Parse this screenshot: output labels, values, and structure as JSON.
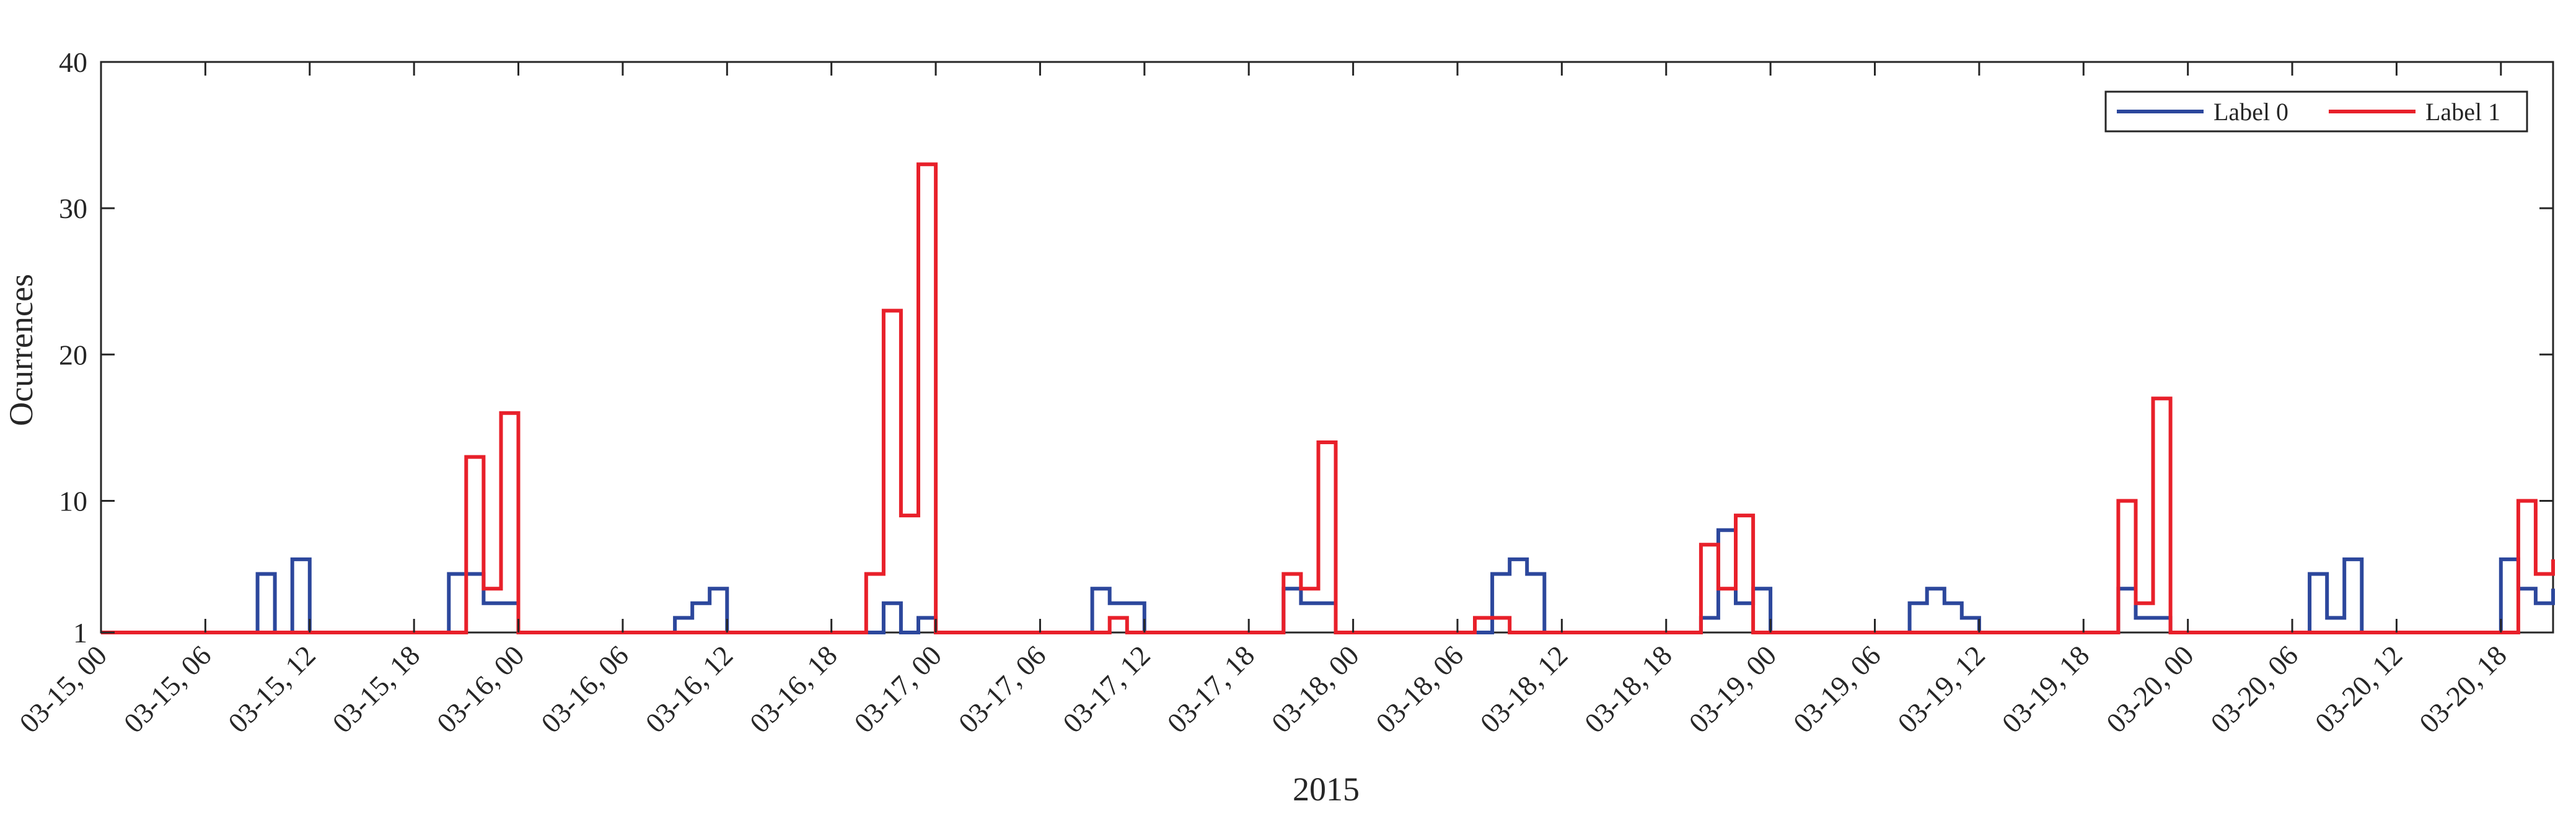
{
  "chart_data": {
    "type": "line",
    "style": "stairs",
    "xlabel": "2015",
    "ylabel": "Ocurrences",
    "ylim": [
      1,
      40
    ],
    "yticks": [
      1,
      10,
      20,
      30,
      40
    ],
    "xlim_hours": [
      0,
      141
    ],
    "x_start": "03-15, 00",
    "bin_hours": 1,
    "xticks": [
      {
        "hour": 0,
        "label": "03-15, 00"
      },
      {
        "hour": 6,
        "label": "03-15, 06"
      },
      {
        "hour": 12,
        "label": "03-15, 12"
      },
      {
        "hour": 18,
        "label": "03-15, 18"
      },
      {
        "hour": 24,
        "label": "03-16, 00"
      },
      {
        "hour": 30,
        "label": "03-16, 06"
      },
      {
        "hour": 36,
        "label": "03-16, 12"
      },
      {
        "hour": 42,
        "label": "03-16, 18"
      },
      {
        "hour": 48,
        "label": "03-17, 00"
      },
      {
        "hour": 54,
        "label": "03-17, 06"
      },
      {
        "hour": 60,
        "label": "03-17, 12"
      },
      {
        "hour": 66,
        "label": "03-17, 18"
      },
      {
        "hour": 72,
        "label": "03-18, 00"
      },
      {
        "hour": 78,
        "label": "03-18, 06"
      },
      {
        "hour": 84,
        "label": "03-18, 12"
      },
      {
        "hour": 90,
        "label": "03-18, 18"
      },
      {
        "hour": 96,
        "label": "03-19, 00"
      },
      {
        "hour": 102,
        "label": "03-19, 06"
      },
      {
        "hour": 108,
        "label": "03-19, 12"
      },
      {
        "hour": 114,
        "label": "03-19, 18"
      },
      {
        "hour": 120,
        "label": "03-20, 00"
      },
      {
        "hour": 126,
        "label": "03-20, 06"
      },
      {
        "hour": 132,
        "label": "03-20, 12"
      },
      {
        "hour": 138,
        "label": "03-20, 18"
      }
    ],
    "legend_position": "top-right",
    "grid": false,
    "series": [
      {
        "name": "Label 0",
        "color": "#2c479c",
        "points": [
          [
            0,
            1
          ],
          [
            9,
            1
          ],
          [
            9,
            5
          ],
          [
            10,
            5
          ],
          [
            10,
            1
          ],
          [
            11,
            1
          ],
          [
            11,
            6
          ],
          [
            12,
            6
          ],
          [
            12,
            1
          ],
          [
            20,
            1
          ],
          [
            20,
            5
          ],
          [
            22,
            5
          ],
          [
            22,
            3
          ],
          [
            24,
            3
          ],
          [
            24,
            1
          ],
          [
            33,
            1
          ],
          [
            33,
            2
          ],
          [
            34,
            2
          ],
          [
            34,
            3
          ],
          [
            35,
            3
          ],
          [
            35,
            4
          ],
          [
            36,
            4
          ],
          [
            36,
            1
          ],
          [
            45,
            1
          ],
          [
            45,
            3
          ],
          [
            46,
            3
          ],
          [
            46,
            1
          ],
          [
            47,
            1
          ],
          [
            47,
            2
          ],
          [
            48,
            2
          ],
          [
            48,
            1
          ],
          [
            57,
            1
          ],
          [
            57,
            4
          ],
          [
            58,
            4
          ],
          [
            58,
            3
          ],
          [
            60,
            3
          ],
          [
            60,
            1
          ],
          [
            68,
            1
          ],
          [
            68,
            4
          ],
          [
            69,
            4
          ],
          [
            69,
            3
          ],
          [
            71,
            3
          ],
          [
            71,
            1
          ],
          [
            80,
            1
          ],
          [
            80,
            5
          ],
          [
            81,
            5
          ],
          [
            81,
            6
          ],
          [
            82,
            6
          ],
          [
            82,
            5
          ],
          [
            83,
            5
          ],
          [
            83,
            1
          ],
          [
            92,
            1
          ],
          [
            92,
            2
          ],
          [
            93,
            2
          ],
          [
            93,
            8
          ],
          [
            94,
            8
          ],
          [
            94,
            3
          ],
          [
            95,
            3
          ],
          [
            95,
            4
          ],
          [
            96,
            4
          ],
          [
            96,
            1
          ],
          [
            104,
            1
          ],
          [
            104,
            3
          ],
          [
            105,
            3
          ],
          [
            105,
            4
          ],
          [
            106,
            4
          ],
          [
            106,
            3
          ],
          [
            107,
            3
          ],
          [
            107,
            2
          ],
          [
            108,
            2
          ],
          [
            108,
            1
          ],
          [
            116,
            1
          ],
          [
            116,
            4
          ],
          [
            117,
            4
          ],
          [
            117,
            2
          ],
          [
            119,
            2
          ],
          [
            119,
            1
          ],
          [
            127,
            1
          ],
          [
            127,
            5
          ],
          [
            128,
            5
          ],
          [
            128,
            2
          ],
          [
            129,
            2
          ],
          [
            129,
            6
          ],
          [
            130,
            6
          ],
          [
            130,
            1
          ],
          [
            138,
            1
          ],
          [
            138,
            6
          ],
          [
            139,
            6
          ],
          [
            139,
            4
          ],
          [
            140,
            4
          ],
          [
            140,
            3
          ],
          [
            141,
            3
          ],
          [
            141,
            4
          ]
        ]
      },
      {
        "name": "Label 1",
        "color": "#e8202a",
        "points": [
          [
            0,
            1
          ],
          [
            20,
            1
          ],
          [
            20,
            1
          ],
          [
            21,
            1
          ],
          [
            21,
            13
          ],
          [
            22,
            13
          ],
          [
            22,
            4
          ],
          [
            23,
            4
          ],
          [
            23,
            16
          ],
          [
            24,
            16
          ],
          [
            24,
            1
          ],
          [
            44,
            1
          ],
          [
            44,
            5
          ],
          [
            45,
            5
          ],
          [
            45,
            23
          ],
          [
            46,
            23
          ],
          [
            46,
            9
          ],
          [
            47,
            9
          ],
          [
            47,
            33
          ],
          [
            48,
            33
          ],
          [
            48,
            1
          ],
          [
            56,
            1
          ],
          [
            58,
            1
          ],
          [
            58,
            2
          ],
          [
            59,
            2
          ],
          [
            59,
            1
          ],
          [
            67,
            1
          ],
          [
            68,
            1
          ],
          [
            68,
            5
          ],
          [
            69,
            5
          ],
          [
            69,
            4
          ],
          [
            70,
            4
          ],
          [
            70,
            14
          ],
          [
            71,
            14
          ],
          [
            71,
            1
          ],
          [
            79,
            1
          ],
          [
            79,
            2
          ],
          [
            81,
            2
          ],
          [
            81,
            1
          ],
          [
            82,
            1
          ],
          [
            91,
            1
          ],
          [
            92,
            1
          ],
          [
            92,
            7
          ],
          [
            93,
            7
          ],
          [
            93,
            4
          ],
          [
            94,
            4
          ],
          [
            94,
            9
          ],
          [
            95,
            9
          ],
          [
            95,
            1
          ],
          [
            96,
            1
          ],
          [
            102,
            1
          ],
          [
            103,
            1
          ],
          [
            115,
            1
          ],
          [
            116,
            1
          ],
          [
            116,
            10
          ],
          [
            117,
            10
          ],
          [
            117,
            3
          ],
          [
            118,
            3
          ],
          [
            118,
            17
          ],
          [
            119,
            17
          ],
          [
            119,
            1
          ],
          [
            137,
            1
          ],
          [
            138,
            1
          ],
          [
            138,
            1
          ],
          [
            139,
            1
          ],
          [
            139,
            10
          ],
          [
            140,
            10
          ],
          [
            140,
            5
          ],
          [
            141,
            5
          ],
          [
            141,
            6
          ],
          [
            142,
            6
          ],
          [
            142,
            1
          ]
        ]
      }
    ]
  }
}
